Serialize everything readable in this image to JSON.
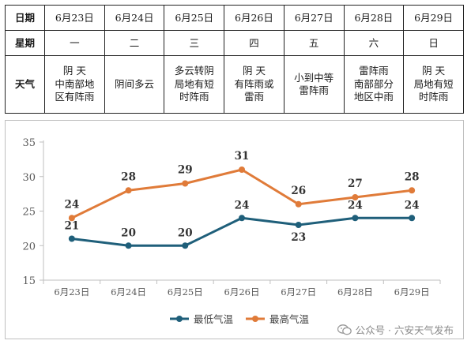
{
  "table": {
    "row_labels": {
      "date": "日期",
      "week": "星期",
      "weather": "天气"
    },
    "dates": [
      "6月23日",
      "6月24日",
      "6月25日",
      "6月26日",
      "6月27日",
      "6月28日",
      "6月29日"
    ],
    "weekdays": [
      "一",
      "二",
      "三",
      "四",
      "五",
      "六",
      "日"
    ],
    "weather": [
      "阴 天\n中南部地\n区有阵雨",
      "阴间多云",
      "多云转阴\n局地有短\n时阵雨",
      "阴 天\n有阵雨或\n雷雨",
      "小到中等\n雷阵雨",
      "雷阵雨\n南部部分\n地区中雨",
      "阴 天\n局地有短\n时阵雨"
    ]
  },
  "chart_data": {
    "type": "line",
    "categories": [
      "6月23日",
      "6月24日",
      "6月25日",
      "6月26日",
      "6月27日",
      "6月28日",
      "6月29日"
    ],
    "series": [
      {
        "name": "最低气温",
        "values": [
          21,
          20,
          20,
          24,
          23,
          24,
          24
        ],
        "color": "#1f5f7a"
      },
      {
        "name": "最高气温",
        "values": [
          24,
          28,
          29,
          31,
          26,
          27,
          28
        ],
        "color": "#e07b39"
      }
    ],
    "ylim": [
      15,
      35
    ],
    "yticks": [
      15,
      20,
      25,
      30,
      35
    ],
    "grid": false,
    "legend": "bottom"
  },
  "watermark": {
    "text": "公众号 · 六安天气发布",
    "icon": "wechat-icon"
  }
}
